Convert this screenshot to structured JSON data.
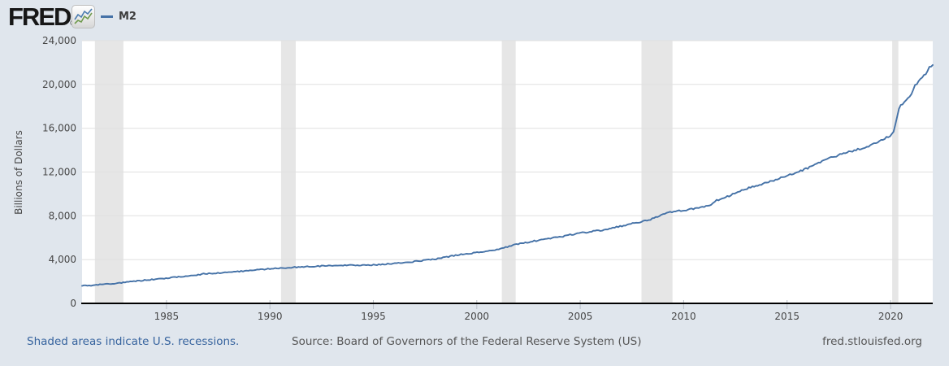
{
  "header": {
    "logo": "FRED",
    "registered_mark": "®"
  },
  "legend": {
    "series_label": "M2",
    "line_color": "#4572a7"
  },
  "footer": {
    "recession_note": "Shaded areas indicate U.S. recessions.",
    "source": "Source: Board of Governors of the Federal Reserve System (US)",
    "site": "fred.stlouisfed.org"
  },
  "chart_data": {
    "type": "line",
    "title": "",
    "ylabel": "Billions of Dollars",
    "xlabel": "",
    "grid": "horizontal",
    "legend_position": "top-left",
    "x_range": [
      1980.92,
      2022.04
    ],
    "y_range": [
      0,
      24000
    ],
    "y_ticks": [
      0,
      4000,
      8000,
      12000,
      16000,
      20000,
      24000
    ],
    "y_tick_labels": [
      "0",
      "4,000",
      "8,000",
      "12,000",
      "16,000",
      "20,000",
      "24,000"
    ],
    "x_ticks": [
      1985,
      1990,
      1995,
      2000,
      2005,
      2010,
      2015,
      2020
    ],
    "x_tick_labels": [
      "1985",
      "1990",
      "1995",
      "2000",
      "2005",
      "2010",
      "2015",
      "2020"
    ],
    "recessions": [
      [
        1981.54,
        1982.92
      ],
      [
        1990.54,
        1991.25
      ],
      [
        2001.21,
        2001.88
      ],
      [
        2007.96,
        2009.46
      ],
      [
        2020.08,
        2020.38
      ]
    ],
    "recession_band_color": "#e6e6e6",
    "gridline_color": "#e0e0e0",
    "axis_color": "#000000",
    "plot_background": "#ffffff",
    "series": [
      {
        "name": "M2",
        "color": "#4572a7",
        "points": [
          [
            1980.92,
            1598
          ],
          [
            1981.25,
            1631
          ],
          [
            1981.5,
            1665
          ],
          [
            1981.75,
            1710
          ],
          [
            1982,
            1756
          ],
          [
            1982.25,
            1783
          ],
          [
            1982.5,
            1818
          ],
          [
            1982.75,
            1866
          ],
          [
            1983,
            1910
          ],
          [
            1983.25,
            1975
          ],
          [
            1983.5,
            2025
          ],
          [
            1983.75,
            2075
          ],
          [
            1984,
            2126
          ],
          [
            1984.25,
            2170
          ],
          [
            1984.5,
            2212
          ],
          [
            1984.75,
            2260
          ],
          [
            1985,
            2310
          ],
          [
            1985.25,
            2360
          ],
          [
            1985.5,
            2405
          ],
          [
            1985.75,
            2450
          ],
          [
            1986,
            2497
          ],
          [
            1986.25,
            2555
          ],
          [
            1986.5,
            2615
          ],
          [
            1986.75,
            2675
          ],
          [
            1987,
            2734
          ],
          [
            1987.25,
            2760
          ],
          [
            1987.5,
            2785
          ],
          [
            1987.75,
            2810
          ],
          [
            1988,
            2832
          ],
          [
            1988.25,
            2875
          ],
          [
            1988.5,
            2915
          ],
          [
            1988.75,
            2955
          ],
          [
            1989,
            2995
          ],
          [
            1989.25,
            3035
          ],
          [
            1989.5,
            3075
          ],
          [
            1989.75,
            3118
          ],
          [
            1990,
            3159
          ],
          [
            1990.25,
            3190
          ],
          [
            1990.5,
            3220
          ],
          [
            1990.75,
            3250
          ],
          [
            1991,
            3279
          ],
          [
            1991.25,
            3305
          ],
          [
            1991.5,
            3330
          ],
          [
            1991.75,
            3355
          ],
          [
            1992,
            3379
          ],
          [
            1992.5,
            3408
          ],
          [
            1993,
            3434
          ],
          [
            1993.5,
            3458
          ],
          [
            1994,
            3487
          ],
          [
            1994.5,
            3495
          ],
          [
            1995,
            3502
          ],
          [
            1995.5,
            3572
          ],
          [
            1996,
            3649
          ],
          [
            1996.5,
            3735
          ],
          [
            1997,
            3824
          ],
          [
            1997.5,
            3930
          ],
          [
            1998,
            4046
          ],
          [
            1998.5,
            4215
          ],
          [
            1999,
            4401
          ],
          [
            1999.5,
            4520
          ],
          [
            2000,
            4646
          ],
          [
            2000.5,
            4785
          ],
          [
            2001,
            4933
          ],
          [
            2001.5,
            5190
          ],
          [
            2002,
            5433
          ],
          [
            2002.5,
            5605
          ],
          [
            2003,
            5771
          ],
          [
            2003.5,
            5935
          ],
          [
            2004,
            6066
          ],
          [
            2004.5,
            6255
          ],
          [
            2005,
            6417
          ],
          [
            2005.5,
            6550
          ],
          [
            2006,
            6680
          ],
          [
            2006.5,
            6875
          ],
          [
            2007,
            7070
          ],
          [
            2007.5,
            7280
          ],
          [
            2008,
            7471
          ],
          [
            2008.4,
            7650
          ],
          [
            2008.7,
            7890
          ],
          [
            2009,
            8190
          ],
          [
            2009.3,
            8340
          ],
          [
            2009.6,
            8420
          ],
          [
            2010,
            8493
          ],
          [
            2010.5,
            8640
          ],
          [
            2011,
            8799
          ],
          [
            2011.3,
            9000
          ],
          [
            2011.6,
            9420
          ],
          [
            2012,
            9659
          ],
          [
            2012.5,
            10060
          ],
          [
            2013,
            10450
          ],
          [
            2013.5,
            10740
          ],
          [
            2014,
            11020
          ],
          [
            2014.5,
            11350
          ],
          [
            2015,
            11674
          ],
          [
            2015.5,
            12010
          ],
          [
            2016,
            12338
          ],
          [
            2016.5,
            12810
          ],
          [
            2017,
            13214
          ],
          [
            2017.5,
            13560
          ],
          [
            2018,
            13855
          ],
          [
            2018.5,
            14110
          ],
          [
            2019,
            14367
          ],
          [
            2019.5,
            14860
          ],
          [
            2020,
            15319
          ],
          [
            2020.13,
            15470
          ],
          [
            2020.2,
            16100
          ],
          [
            2020.3,
            17000
          ],
          [
            2020.45,
            17950
          ],
          [
            2020.6,
            18330
          ],
          [
            2020.8,
            18720
          ],
          [
            2021,
            19129
          ],
          [
            2021.2,
            19920
          ],
          [
            2021.4,
            20360
          ],
          [
            2021.6,
            20720
          ],
          [
            2021.8,
            21240
          ],
          [
            2021.92,
            21760
          ],
          [
            2021.98,
            21640
          ],
          [
            2022.04,
            21780
          ]
        ]
      }
    ]
  }
}
